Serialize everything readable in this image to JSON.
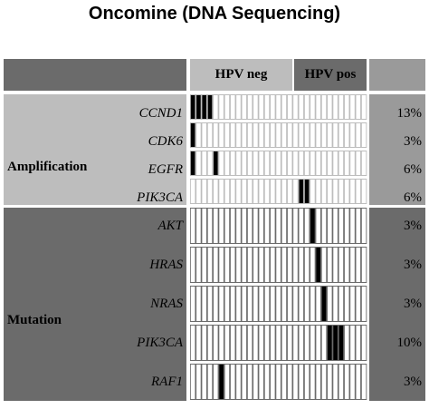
{
  "title": "Oncomine (DNA Sequencing)",
  "header": {
    "hpv_neg": "HPV neg",
    "hpv_pos": "HPV pos"
  },
  "colors": {
    "dark_fill": "#6b6b6b",
    "light_fill": "#bdbdbd",
    "pct_light": "#9a9a9a",
    "mark": "#000000",
    "cell_bg": "#ffffff"
  },
  "chart_data": {
    "type": "heatmap",
    "title": "Oncomine (DNA Sequencing)",
    "columns_total": 31,
    "groups": [
      {
        "name": "HPV neg",
        "columns": 22
      },
      {
        "name": "HPV pos",
        "columns": 9
      }
    ],
    "sections": [
      {
        "name": "Amplification",
        "rows": [
          {
            "gene": "CCND1",
            "percent": "13%",
            "altered_columns": [
              0,
              1,
              2,
              3
            ]
          },
          {
            "gene": "CDK6",
            "percent": "3%",
            "altered_columns": [
              0
            ]
          },
          {
            "gene": "EGFR",
            "percent": "6%",
            "altered_columns": [
              0,
              4
            ]
          },
          {
            "gene": "PIK3CA",
            "percent": "6%",
            "altered_columns": [
              19,
              20
            ]
          }
        ]
      },
      {
        "name": "Mutation",
        "rows": [
          {
            "gene": "AKT",
            "percent": "3%",
            "altered_columns": [
              21
            ]
          },
          {
            "gene": "HRAS",
            "percent": "3%",
            "altered_columns": [
              22
            ]
          },
          {
            "gene": "NRAS",
            "percent": "3%",
            "altered_columns": [
              23
            ]
          },
          {
            "gene": "PIK3CA",
            "percent": "10%",
            "altered_columns": [
              24,
              25,
              26
            ]
          },
          {
            "gene": "RAF1",
            "percent": "3%",
            "altered_columns": [
              5
            ]
          }
        ]
      }
    ]
  }
}
